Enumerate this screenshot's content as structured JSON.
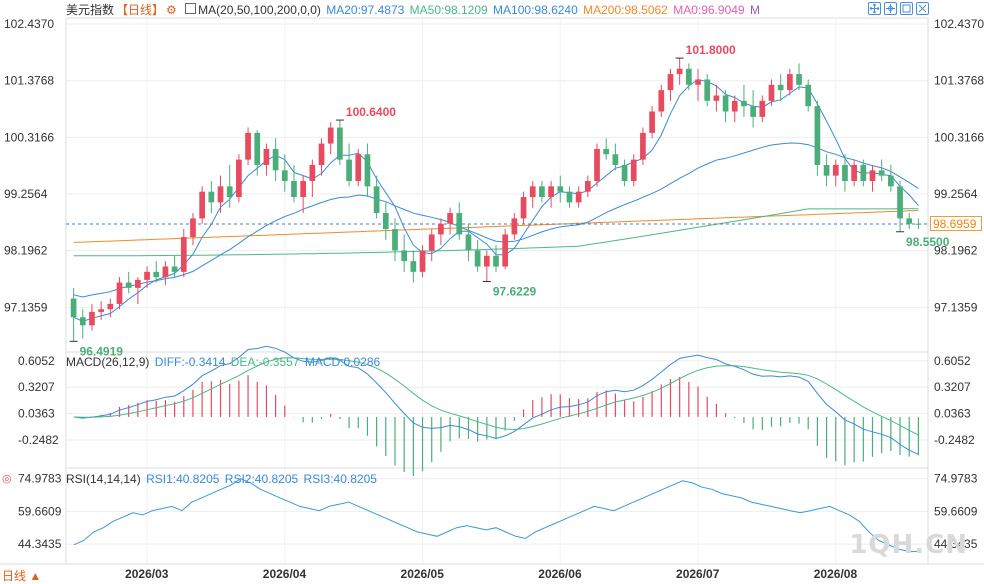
{
  "header": {
    "symbol": "美元指数",
    "period": "【日线】",
    "ma_label": "MA(20,50,100,200,0,0)",
    "ma20": "MA20:97.4873",
    "ma50": "MA50:98.1209",
    "ma100": "MA100:98.6240",
    "ma200": "MA200:98.5062",
    "ma0": "MA0:96.9049",
    "m": "M"
  },
  "toolbar": {
    "buttons": [
      "move-icon",
      "crosshair-icon",
      "expand-icon",
      "restore-icon"
    ]
  },
  "colors": {
    "up": "#e84a5f",
    "down": "#4bae7a",
    "ma20": "#3a8ad8",
    "ma50": "#4bb88a",
    "ma100": "#3a8ad8",
    "ma200": "#f08a2a",
    "grid": "#eeeeee"
  },
  "main_axis": {
    "ticks": [
      "102.4370",
      "101.3768",
      "100.3166",
      "99.2564",
      "98.1962",
      "97.1359"
    ]
  },
  "annotations": {
    "high1": "100.6400",
    "high2": "101.8000",
    "low1": "96.4919",
    "low2": "97.6229",
    "low3": "98.5500",
    "last": "98.6959"
  },
  "macd": {
    "label": "MACD(26,12,9)",
    "diff": "DIFF:-0.3414",
    "dea": "DEA:-0.3557",
    "macd": "MACD:0.0286",
    "ticks": [
      "0.6052",
      "0.3207",
      "0.0363",
      "-0.2482"
    ]
  },
  "rsi": {
    "label": "RSI(14,14,14)",
    "rsi1": "RSI1:40.8205",
    "rsi2": "RSI2:40.8205",
    "rsi3": "RSI3:40.8205",
    "ticks": [
      "74.9783",
      "59.6609",
      "44.3435"
    ]
  },
  "x_axis": {
    "months": [
      "2026/03",
      "2026/04",
      "2026/05",
      "2026/06",
      "2026/07",
      "2026/08"
    ]
  },
  "footer": {
    "period_select": "日线 ▲",
    "brand": "1QH.CN"
  },
  "chart_data": [
    {
      "type": "candlestick",
      "title": "美元指数",
      "ylim": [
        96.3,
        102.55
      ],
      "series": [
        {
          "name": "K",
          "values_ohlc": [
            [
              97.3,
              97.5,
              96.5,
              96.95
            ],
            [
              96.95,
              97.1,
              96.55,
              96.8
            ],
            [
              96.8,
              97.2,
              96.7,
              97.05
            ],
            [
              97.05,
              97.25,
              96.9,
              97.1
            ],
            [
              97.1,
              97.3,
              96.95,
              97.2
            ],
            [
              97.2,
              97.7,
              97.1,
              97.6
            ],
            [
              97.6,
              97.8,
              97.4,
              97.5
            ],
            [
              97.5,
              97.7,
              97.2,
              97.65
            ],
            [
              97.65,
              97.9,
              97.5,
              97.8
            ],
            [
              97.8,
              98.0,
              97.6,
              97.7
            ],
            [
              97.7,
              98.0,
              97.55,
              97.9
            ],
            [
              97.9,
              98.1,
              97.7,
              97.8
            ],
            [
              97.8,
              98.6,
              97.7,
              98.45
            ],
            [
              98.45,
              98.9,
              98.3,
              98.8
            ],
            [
              98.8,
              99.4,
              98.7,
              99.3
            ],
            [
              99.3,
              99.5,
              98.9,
              99.1
            ],
            [
              99.1,
              99.6,
              98.9,
              99.4
            ],
            [
              99.4,
              99.8,
              99.0,
              99.2
            ],
            [
              99.2,
              100.0,
              99.1,
              99.9
            ],
            [
              99.9,
              100.5,
              99.8,
              100.4
            ],
            [
              100.4,
              100.45,
              99.6,
              99.8
            ],
            [
              99.8,
              100.2,
              99.6,
              100.1
            ],
            [
              100.1,
              100.3,
              99.5,
              99.7
            ],
            [
              99.7,
              100.0,
              99.3,
              99.5
            ],
            [
              99.5,
              99.8,
              99.1,
              99.2
            ],
            [
              99.2,
              99.6,
              98.9,
              99.5
            ],
            [
              99.5,
              99.9,
              99.2,
              99.8
            ],
            [
              99.8,
              100.3,
              99.6,
              100.2
            ],
            [
              100.2,
              100.6,
              100.0,
              100.5
            ],
            [
              100.5,
              100.64,
              99.8,
              99.9
            ],
            [
              99.9,
              100.2,
              99.4,
              99.5
            ],
            [
              99.5,
              100.1,
              99.4,
              100.0
            ],
            [
              100.0,
              100.2,
              99.2,
              99.4
            ],
            [
              99.4,
              99.6,
              98.8,
              98.9
            ],
            [
              98.9,
              99.1,
              98.4,
              98.6
            ],
            [
              98.6,
              98.8,
              98.0,
              98.2
            ],
            [
              98.2,
              98.5,
              97.8,
              98.0
            ],
            [
              98.0,
              98.2,
              97.6,
              97.8
            ],
            [
              97.8,
              98.3,
              97.7,
              98.2
            ],
            [
              98.2,
              98.6,
              98.0,
              98.5
            ],
            [
              98.5,
              98.8,
              98.3,
              98.7
            ],
            [
              98.7,
              99.0,
              98.5,
              98.9
            ],
            [
              98.9,
              99.1,
              98.4,
              98.5
            ],
            [
              98.5,
              98.7,
              98.0,
              98.2
            ],
            [
              98.2,
              98.4,
              97.8,
              97.9
            ],
            [
              97.9,
              98.2,
              97.62,
              98.1
            ],
            [
              98.1,
              98.3,
              97.8,
              97.9
            ],
            [
              97.9,
              98.6,
              97.85,
              98.5
            ],
            [
              98.5,
              98.9,
              98.4,
              98.8
            ],
            [
              98.8,
              99.3,
              98.7,
              99.2
            ],
            [
              99.2,
              99.5,
              99.0,
              99.4
            ],
            [
              99.4,
              99.5,
              99.1,
              99.2
            ],
            [
              99.2,
              99.5,
              99.0,
              99.4
            ],
            [
              99.4,
              99.6,
              99.1,
              99.3
            ],
            [
              99.3,
              99.4,
              99.0,
              99.1
            ],
            [
              99.1,
              99.4,
              99.0,
              99.3
            ],
            [
              99.3,
              99.6,
              99.2,
              99.5
            ],
            [
              99.5,
              100.2,
              99.4,
              100.1
            ],
            [
              100.1,
              100.3,
              99.9,
              100.0
            ],
            [
              100.0,
              100.2,
              99.7,
              99.8
            ],
            [
              99.8,
              99.9,
              99.4,
              99.5
            ],
            [
              99.5,
              100.0,
              99.4,
              99.9
            ],
            [
              99.9,
              100.5,
              99.8,
              100.4
            ],
            [
              100.4,
              100.9,
              100.3,
              100.8
            ],
            [
              100.8,
              101.3,
              100.7,
              101.2
            ],
            [
              101.2,
              101.6,
              101.0,
              101.5
            ],
            [
              101.5,
              101.8,
              101.3,
              101.6
            ],
            [
              101.6,
              101.7,
              101.2,
              101.3
            ],
            [
              101.3,
              101.6,
              101.0,
              101.4
            ],
            [
              101.4,
              101.5,
              100.9,
              101.0
            ],
            [
              101.0,
              101.3,
              100.8,
              101.1
            ],
            [
              101.1,
              101.2,
              100.6,
              100.8
            ],
            [
              100.8,
              101.1,
              100.6,
              101.0
            ],
            [
              101.0,
              101.3,
              100.7,
              100.9
            ],
            [
              100.9,
              101.2,
              100.5,
              100.7
            ],
            [
              100.7,
              101.1,
              100.6,
              101.0
            ],
            [
              101.0,
              101.4,
              100.9,
              101.3
            ],
            [
              101.3,
              101.5,
              101.0,
              101.2
            ],
            [
              101.2,
              101.6,
              101.1,
              101.5
            ],
            [
              101.5,
              101.7,
              101.2,
              101.3
            ],
            [
              101.3,
              101.4,
              100.8,
              100.9
            ],
            [
              100.9,
              101.0,
              99.6,
              99.8
            ],
            [
              99.8,
              100.0,
              99.4,
              99.6
            ],
            [
              99.6,
              99.9,
              99.4,
              99.8
            ],
            [
              99.8,
              100.0,
              99.3,
              99.5
            ],
            [
              99.5,
              99.9,
              99.4,
              99.8
            ],
            [
              99.8,
              99.9,
              99.4,
              99.5
            ],
            [
              99.5,
              99.8,
              99.3,
              99.7
            ],
            [
              99.7,
              99.9,
              99.5,
              99.6
            ],
            [
              99.6,
              99.8,
              99.3,
              99.4
            ],
            [
              99.4,
              99.5,
              98.55,
              98.8
            ],
            [
              98.8,
              98.9,
              98.6,
              98.7
            ],
            [
              98.7,
              98.8,
              98.6,
              98.6959
            ]
          ]
        },
        {
          "name": "MA20"
        },
        {
          "name": "MA50"
        },
        {
          "name": "MA100"
        },
        {
          "name": "MA200"
        }
      ]
    },
    {
      "type": "line",
      "title": "MACD(26,12,9)",
      "ylim": [
        -0.55,
        0.7
      ],
      "series": [
        {
          "name": "DIFF",
          "last": -0.3414
        },
        {
          "name": "DEA",
          "last": -0.3557
        },
        {
          "name": "MACD",
          "last": 0.0286
        }
      ]
    },
    {
      "type": "line",
      "title": "RSI(14,14,14)",
      "ylim": [
        35,
        80
      ],
      "series": [
        {
          "name": "RSI1",
          "values": [
            44,
            46,
            50,
            52,
            55,
            57,
            59,
            58,
            60,
            61,
            62,
            60,
            64,
            66,
            68,
            70,
            72,
            75,
            73,
            70,
            68,
            66,
            64,
            62,
            61,
            60,
            62,
            63,
            64,
            62,
            60,
            58,
            56,
            54,
            52,
            50,
            49,
            48,
            50,
            52,
            53,
            52,
            51,
            52,
            50,
            48,
            47,
            50,
            52,
            54,
            56,
            58,
            60,
            62,
            61,
            60,
            62,
            64,
            66,
            68,
            70,
            72,
            74,
            73,
            71,
            70,
            68,
            67,
            66,
            64,
            63,
            62,
            61,
            60,
            59,
            60,
            61,
            62,
            60,
            58,
            55,
            50,
            46,
            44,
            42,
            41,
            40.8205
          ]
        },
        {
          "name": "RSI2",
          "last": 40.8205
        },
        {
          "name": "RSI3",
          "last": 40.8205
        }
      ]
    }
  ]
}
